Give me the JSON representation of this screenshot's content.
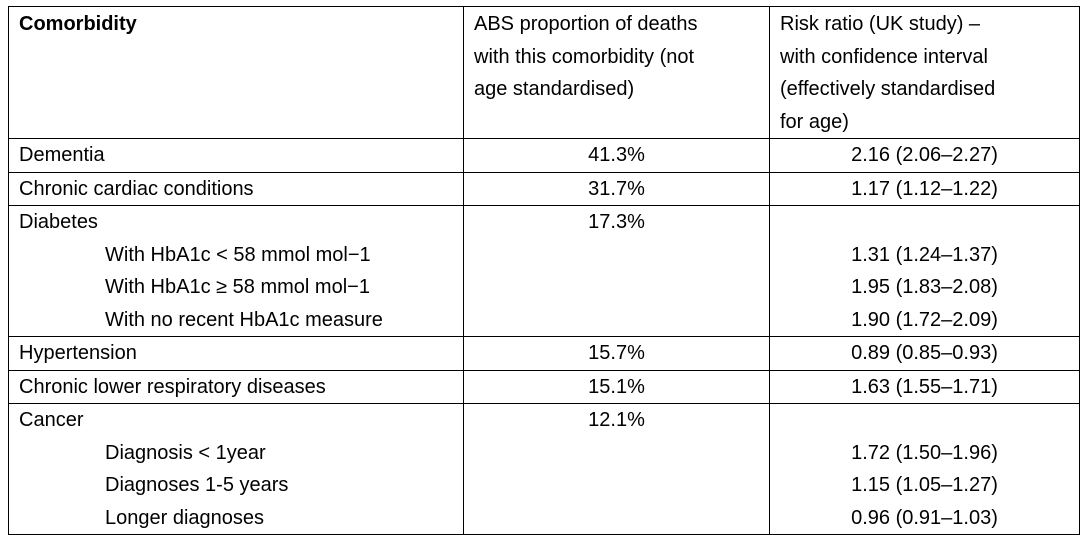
{
  "headers": {
    "comorbidity": "Comorbidity",
    "abs_lines": [
      "ABS proportion of deaths",
      "with this comorbidity (not",
      "age standardised)"
    ],
    "risk_lines": [
      "Risk ratio (UK study) –",
      "with confidence interval",
      "(effectively standardised",
      "for age)"
    ]
  },
  "rows": [
    {
      "labels": [
        {
          "text": "Dementia",
          "indent": false
        }
      ],
      "abs": "41.3%",
      "risks": [
        "2.16 (2.06–2.27)"
      ]
    },
    {
      "labels": [
        {
          "text": "Chronic cardiac conditions",
          "indent": false
        }
      ],
      "abs": "31.7%",
      "risks": [
        "1.17 (1.12–1.22)"
      ]
    },
    {
      "labels": [
        {
          "text": "Diabetes",
          "indent": false
        },
        {
          "text": "With HbA1c < 58 mmol mol−1",
          "indent": true
        },
        {
          "text": "With HbA1c ≥ 58 mmol mol−1",
          "indent": true
        },
        {
          "text": "With no recent HbA1c measure",
          "indent": true
        }
      ],
      "abs": "17.3%",
      "risks": [
        "",
        "1.31 (1.24–1.37)",
        "1.95 (1.83–2.08)",
        "1.90 (1.72–2.09)"
      ]
    },
    {
      "labels": [
        {
          "text": "Hypertension",
          "indent": false
        }
      ],
      "abs": "15.7%",
      "risks": [
        "0.89 (0.85–0.93)"
      ]
    },
    {
      "labels": [
        {
          "text": "Chronic lower respiratory diseases",
          "indent": false
        }
      ],
      "abs": "15.1%",
      "risks": [
        "1.63 (1.55–1.71)"
      ]
    },
    {
      "labels": [
        {
          "text": "Cancer",
          "indent": false
        },
        {
          "text": "Diagnosis < 1year",
          "indent": true
        },
        {
          "text": "Diagnoses 1-5 years",
          "indent": true
        },
        {
          "text": "Longer diagnoses",
          "indent": true
        }
      ],
      "abs": "12.1%",
      "risks": [
        "",
        "1.72 (1.50–1.96)",
        "1.15 (1.05–1.27)",
        "0.96 (0.91–1.03)"
      ]
    }
  ]
}
